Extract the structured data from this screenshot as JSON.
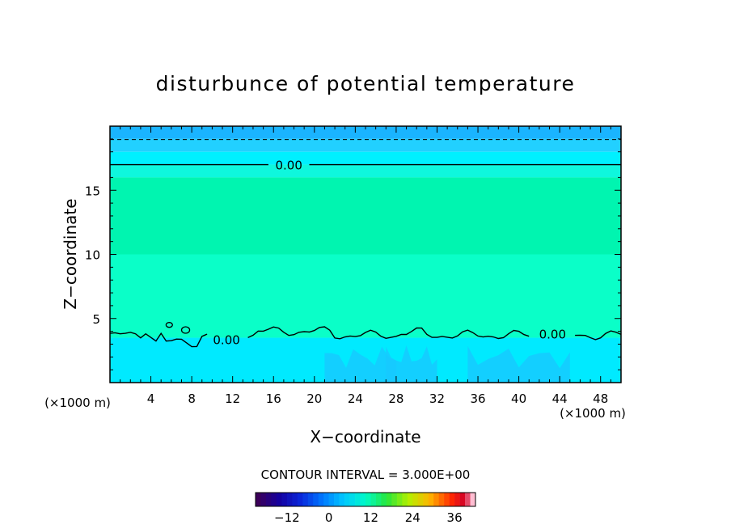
{
  "chart_data": {
    "type": "heatmap",
    "title": "disturbunce of potential temperature",
    "xlabel": "X−coordinate",
    "ylabel": "Z−coordinate",
    "x_unit_left": "(×1000 m)",
    "x_unit_right": "(×1000 m)",
    "xlim": [
      0,
      50
    ],
    "ylim": [
      0,
      20
    ],
    "x_ticks": [
      4,
      8,
      12,
      16,
      20,
      24,
      28,
      32,
      36,
      40,
      44,
      48
    ],
    "y_ticks": [
      5,
      10,
      15
    ],
    "contour_interval_text": "CONTOUR INTERVAL = 3.000E+00",
    "contour_level_labels": [
      "0.00",
      "0.00",
      "0.00"
    ],
    "colorbar": {
      "min": -21,
      "max": 42,
      "ticks": [
        "−12",
        "0",
        "12",
        "24",
        "36"
      ],
      "tick_values": [
        -12,
        0,
        12,
        24,
        36
      ]
    },
    "field_bands": [
      {
        "z_range": [
          19,
          20
        ],
        "value_range": [
          -6,
          -3
        ],
        "color": "#1ab4ff"
      },
      {
        "z_range": [
          18,
          19
        ],
        "value_range": [
          -4,
          -2
        ],
        "color": "#22d0ff"
      },
      {
        "z_range": [
          17,
          18
        ],
        "value_range": [
          -2,
          0
        ],
        "color": "#00f0ff"
      },
      {
        "z_range": [
          16,
          17
        ],
        "value_range": [
          0,
          1
        ],
        "color": "#0ff7dd"
      },
      {
        "z_range": [
          10,
          16
        ],
        "value_range": [
          1,
          3
        ],
        "color": "#00f5b0"
      },
      {
        "z_range": [
          3.5,
          10
        ],
        "value_range": [
          0,
          2
        ],
        "color": "#0affc8"
      },
      {
        "z_range": [
          0,
          3.5
        ],
        "value_range": [
          -3,
          0
        ],
        "color": "#00eaff"
      }
    ],
    "cold_patches_x_ranges": [
      [
        21,
        28
      ],
      [
        27,
        32
      ],
      [
        35,
        45
      ]
    ],
    "grid": false,
    "legend": "colorbar bottom-center"
  }
}
